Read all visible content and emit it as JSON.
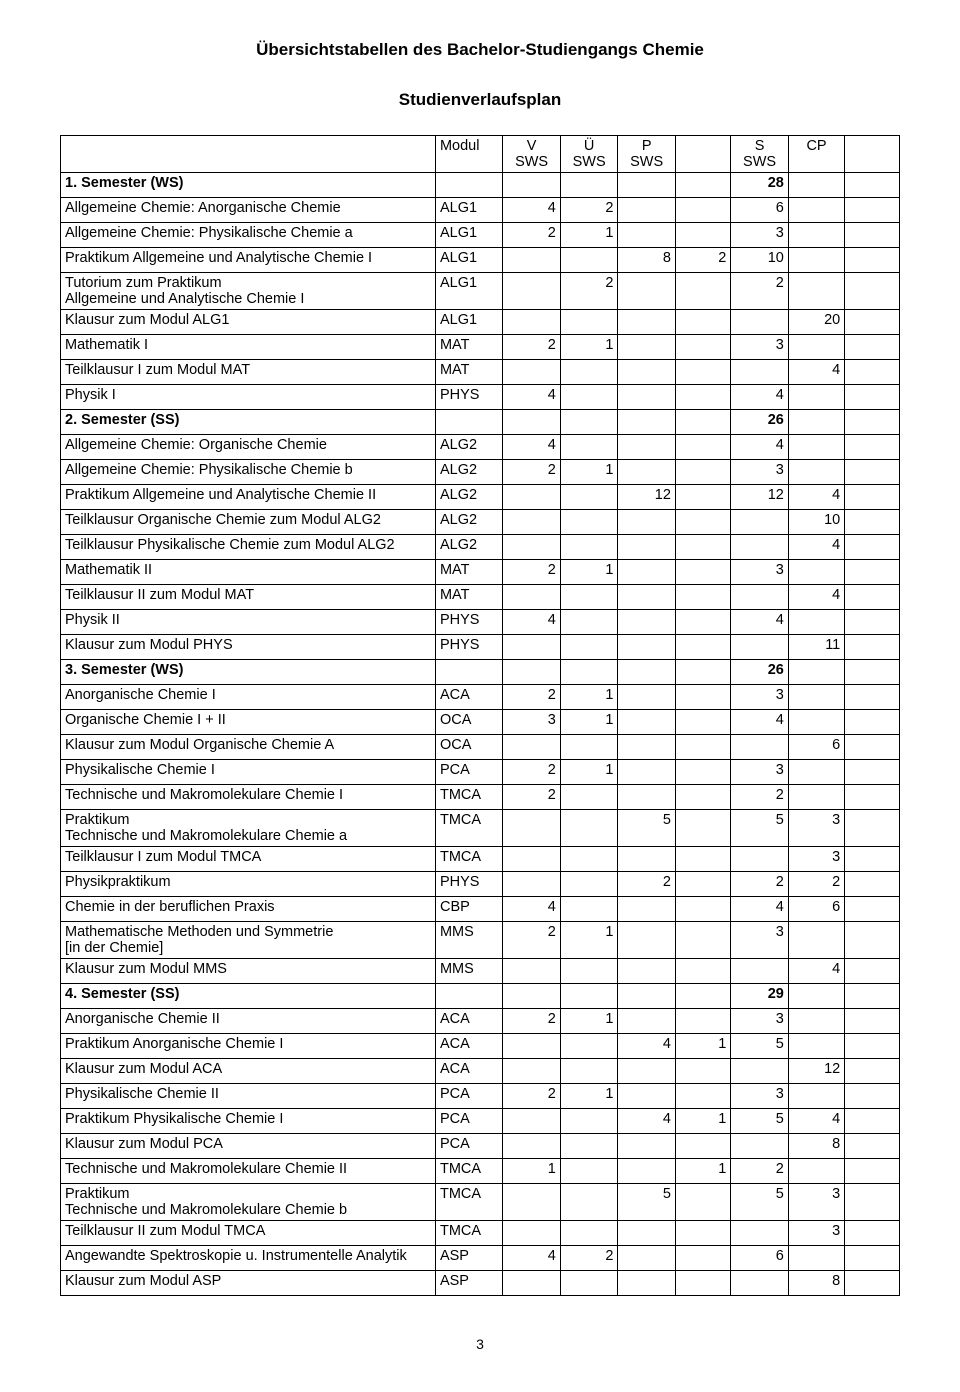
{
  "title": "Übersichtstabellen des Bachelor-Studiengangs Chemie",
  "subtitle": "Studienverlaufsplan",
  "page_number": "3",
  "columns": [
    "",
    "Modul",
    "V\nSWS",
    "Ü\nSWS",
    "P\nSWS",
    "",
    "S\nSWS",
    "CP",
    ""
  ],
  "rows": [
    {
      "bold": true,
      "name": "1. Semester (WS)",
      "mod": "",
      "v": "",
      "u": "",
      "p": "",
      "x": "",
      "s": "28",
      "cp": "",
      "y": ""
    },
    {
      "name": "Allgemeine Chemie: Anorganische Chemie",
      "mod": "ALG1",
      "v": "4",
      "u": "2",
      "p": "",
      "x": "",
      "s": "6",
      "cp": "",
      "y": ""
    },
    {
      "name": "Allgemeine Chemie: Physikalische Chemie a",
      "mod": "ALG1",
      "v": "2",
      "u": "1",
      "p": "",
      "x": "",
      "s": "3",
      "cp": "",
      "y": ""
    },
    {
      "name": "Praktikum Allgemeine und Analytische Chemie I",
      "mod": "ALG1",
      "v": "",
      "u": "",
      "p": "8",
      "x": "2",
      "s": "10",
      "cp": "",
      "y": ""
    },
    {
      "name": "Tutorium zum Praktikum\nAllgemeine und Analytische Chemie I",
      "mod": "ALG1",
      "v": "",
      "u": "2",
      "p": "",
      "x": "",
      "s": "2",
      "cp": "",
      "y": ""
    },
    {
      "name": "Klausur zum Modul ALG1",
      "mod": "ALG1",
      "v": "",
      "u": "",
      "p": "",
      "x": "",
      "s": "",
      "cp": "20",
      "y": ""
    },
    {
      "name": "Mathematik I",
      "mod": "MAT",
      "v": "2",
      "u": "1",
      "p": "",
      "x": "",
      "s": "3",
      "cp": "",
      "y": ""
    },
    {
      "name": "Teilklausur I zum Modul MAT",
      "mod": "MAT",
      "v": "",
      "u": "",
      "p": "",
      "x": "",
      "s": "",
      "cp": "4",
      "y": ""
    },
    {
      "name": "Physik I",
      "mod": "PHYS",
      "v": "4",
      "u": "",
      "p": "",
      "x": "",
      "s": "4",
      "cp": "",
      "y": ""
    },
    {
      "bold": true,
      "name": "2. Semester (SS)",
      "mod": "",
      "v": "",
      "u": "",
      "p": "",
      "x": "",
      "s": "26",
      "cp": "",
      "y": ""
    },
    {
      "name": "Allgemeine Chemie: Organische Chemie",
      "mod": "ALG2",
      "v": "4",
      "u": "",
      "p": "",
      "x": "",
      "s": "4",
      "cp": "",
      "y": ""
    },
    {
      "name": "Allgemeine Chemie: Physikalische Chemie b",
      "mod": "ALG2",
      "v": "2",
      "u": "1",
      "p": "",
      "x": "",
      "s": "3",
      "cp": "",
      "y": ""
    },
    {
      "name": "Praktikum Allgemeine und Analytische Chemie II",
      "mod": "ALG2",
      "v": "",
      "u": "",
      "p": "12",
      "x": "",
      "s": "12",
      "cp": "4",
      "y": ""
    },
    {
      "name": "Teilklausur Organische Chemie zum Modul ALG2",
      "mod": "ALG2",
      "v": "",
      "u": "",
      "p": "",
      "x": "",
      "s": "",
      "cp": "10",
      "y": ""
    },
    {
      "name": "Teilklausur Physikalische Chemie zum Modul ALG2",
      "mod": "ALG2",
      "v": "",
      "u": "",
      "p": "",
      "x": "",
      "s": "",
      "cp": "4",
      "y": ""
    },
    {
      "name": "Mathematik II",
      "mod": "MAT",
      "v": "2",
      "u": "1",
      "p": "",
      "x": "",
      "s": "3",
      "cp": "",
      "y": ""
    },
    {
      "name": "Teilklausur II zum Modul MAT",
      "mod": "MAT",
      "v": "",
      "u": "",
      "p": "",
      "x": "",
      "s": "",
      "cp": "4",
      "y": ""
    },
    {
      "name": "Physik II",
      "mod": "PHYS",
      "v": "4",
      "u": "",
      "p": "",
      "x": "",
      "s": "4",
      "cp": "",
      "y": ""
    },
    {
      "name": "Klausur zum Modul PHYS",
      "mod": "PHYS",
      "v": "",
      "u": "",
      "p": "",
      "x": "",
      "s": "",
      "cp": "11",
      "y": ""
    },
    {
      "bold": true,
      "name": "3. Semester (WS)",
      "mod": "",
      "v": "",
      "u": "",
      "p": "",
      "x": "",
      "s": "26",
      "cp": "",
      "y": ""
    },
    {
      "name": "Anorganische Chemie I",
      "mod": "ACA",
      "v": "2",
      "u": "1",
      "p": "",
      "x": "",
      "s": "3",
      "cp": "",
      "y": ""
    },
    {
      "name": "Organische Chemie I + II",
      "mod": "OCA",
      "v": "3",
      "u": "1",
      "p": "",
      "x": "",
      "s": "4",
      "cp": "",
      "y": ""
    },
    {
      "name": "Klausur zum Modul Organische Chemie A",
      "mod": "OCA",
      "v": "",
      "u": "",
      "p": "",
      "x": "",
      "s": "",
      "cp": "6",
      "y": ""
    },
    {
      "name": "Physikalische Chemie I",
      "mod": "PCA",
      "v": "2",
      "u": "1",
      "p": "",
      "x": "",
      "s": "3",
      "cp": "",
      "y": ""
    },
    {
      "name": "Technische und Makromolekulare Chemie I",
      "mod": "TMCA",
      "v": "2",
      "u": "",
      "p": "",
      "x": "",
      "s": "2",
      "cp": "",
      "y": ""
    },
    {
      "name": "Praktikum\nTechnische und Makromolekulare Chemie a",
      "mod": "TMCA",
      "v": "",
      "u": "",
      "p": "5",
      "x": "",
      "s": "5",
      "cp": "3",
      "y": ""
    },
    {
      "name": "Teilklausur I zum Modul TMCA",
      "mod": "TMCA",
      "v": "",
      "u": "",
      "p": "",
      "x": "",
      "s": "",
      "cp": "3",
      "y": ""
    },
    {
      "name": "Physikpraktikum",
      "mod": "PHYS",
      "v": "",
      "u": "",
      "p": "2",
      "x": "",
      "s": "2",
      "cp": "2",
      "y": ""
    },
    {
      "name": "Chemie in der beruflichen Praxis",
      "mod": "CBP",
      "v": "4",
      "u": "",
      "p": "",
      "x": "",
      "s": "4",
      "cp": "6",
      "y": ""
    },
    {
      "name": "Mathematische Methoden und Symmetrie\n[in der Chemie]",
      "mod": "MMS",
      "v": "2",
      "u": "1",
      "p": "",
      "x": "",
      "s": "3",
      "cp": "",
      "y": ""
    },
    {
      "name": "Klausur zum Modul MMS",
      "mod": "MMS",
      "v": "",
      "u": "",
      "p": "",
      "x": "",
      "s": "",
      "cp": "4",
      "y": ""
    },
    {
      "bold": true,
      "name": "4. Semester (SS)",
      "mod": "",
      "v": "",
      "u": "",
      "p": "",
      "x": "",
      "s": "29",
      "cp": "",
      "y": ""
    },
    {
      "name": "Anorganische Chemie II",
      "mod": "ACA",
      "v": "2",
      "u": "1",
      "p": "",
      "x": "",
      "s": "3",
      "cp": "",
      "y": ""
    },
    {
      "name": "Praktikum Anorganische Chemie I",
      "mod": "ACA",
      "v": "",
      "u": "",
      "p": "4",
      "x": "1",
      "s": "5",
      "cp": "",
      "y": ""
    },
    {
      "name": "Klausur zum Modul ACA",
      "mod": "ACA",
      "v": "",
      "u": "",
      "p": "",
      "x": "",
      "s": "",
      "cp": "12",
      "y": ""
    },
    {
      "name": "Physikalische Chemie II",
      "mod": "PCA",
      "v": "2",
      "u": "1",
      "p": "",
      "x": "",
      "s": "3",
      "cp": "",
      "y": ""
    },
    {
      "name": "Praktikum Physikalische Chemie I",
      "mod": "PCA",
      "v": "",
      "u": "",
      "p": "4",
      "x": "1",
      "s": "5",
      "cp": "4",
      "y": ""
    },
    {
      "name": "Klausur zum Modul PCA",
      "mod": "PCA",
      "v": "",
      "u": "",
      "p": "",
      "x": "",
      "s": "",
      "cp": "8",
      "y": ""
    },
    {
      "name": "Technische und Makromolekulare Chemie II",
      "mod": "TMCA",
      "v": "1",
      "u": "",
      "p": "",
      "x": "1",
      "s": "2",
      "cp": "",
      "y": ""
    },
    {
      "name": "Praktikum\nTechnische und Makromolekulare Chemie b",
      "mod": "TMCA",
      "v": "",
      "u": "",
      "p": "5",
      "x": "",
      "s": "5",
      "cp": "3",
      "y": ""
    },
    {
      "name": "Teilklausur II zum Modul TMCA",
      "mod": "TMCA",
      "v": "",
      "u": "",
      "p": "",
      "x": "",
      "s": "",
      "cp": "3",
      "y": ""
    },
    {
      "name": "Angewandte Spektroskopie u. Instrumentelle Analytik",
      "mod": "ASP",
      "v": "4",
      "u": "2",
      "p": "",
      "x": "",
      "s": "6",
      "cp": "",
      "y": ""
    },
    {
      "name": "Klausur zum Modul ASP",
      "mod": "ASP",
      "v": "",
      "u": "",
      "p": "",
      "x": "",
      "s": "",
      "cp": "8",
      "y": ""
    }
  ]
}
